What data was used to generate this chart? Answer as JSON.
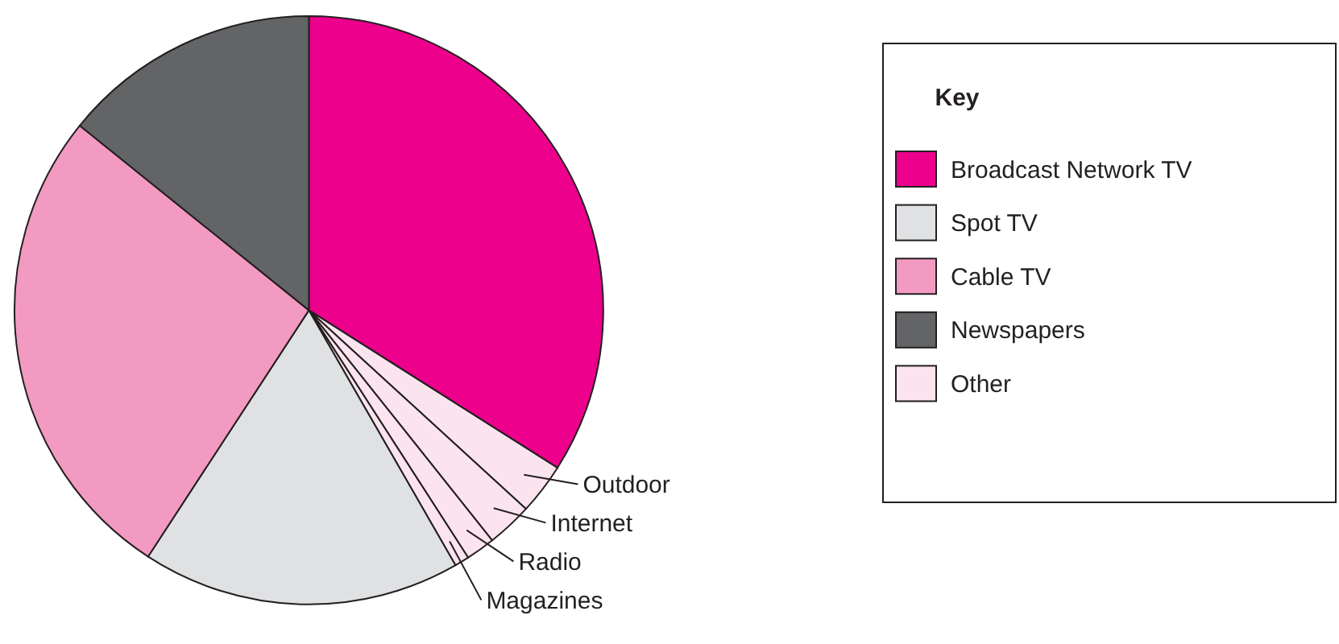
{
  "chart_data": {
    "type": "pie",
    "legend_title": "Key",
    "legend": "right",
    "categories": [
      "Broadcast Network TV",
      "Outdoor",
      "Internet",
      "Radio",
      "Magazines",
      "Spot TV",
      "Cable TV",
      "Newspapers"
    ],
    "values": [
      34.0,
      2.8,
      2.5,
      1.6,
      0.8,
      17.5,
      26.6,
      14.2
    ],
    "colors": [
      "#ec008c",
      "#fce4ef",
      "#fce4ef",
      "#fce4ef",
      "#fce4ef",
      "#e0e1e3",
      "#f39ac2",
      "#636466"
    ],
    "annotations": [
      "Other"
    ]
  }
}
